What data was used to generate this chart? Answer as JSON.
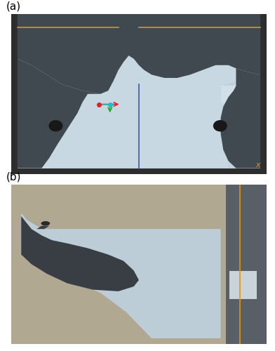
{
  "fig_width": 3.92,
  "fig_height": 5.0,
  "dpi": 100,
  "bg_color": "#ffffff",
  "label_a": "(a)",
  "label_b": "(b)",
  "panel_a": {
    "outer_bg": "#2d2d2d",
    "inner_bg": "#c2d0db",
    "orange_line_color": "#e8920a",
    "orange_x_color": "#e8920a",
    "blue_line_color": "#4455aa",
    "dark_shape_color": "#404850",
    "hole_color": "#181818",
    "axis_red": "#dd2222",
    "axis_cyan": "#22bbcc",
    "axis_green": "#22aa22"
  },
  "panel_b": {
    "bg_color": "#b0a890",
    "light_shape": "#bccdd8",
    "dark_shape_color": "#383e44",
    "orange_line_color": "#e8920a",
    "right_block_bg": "#585f66",
    "white_rect": "#c8d4da",
    "small_dark": "#2a2a2a"
  }
}
